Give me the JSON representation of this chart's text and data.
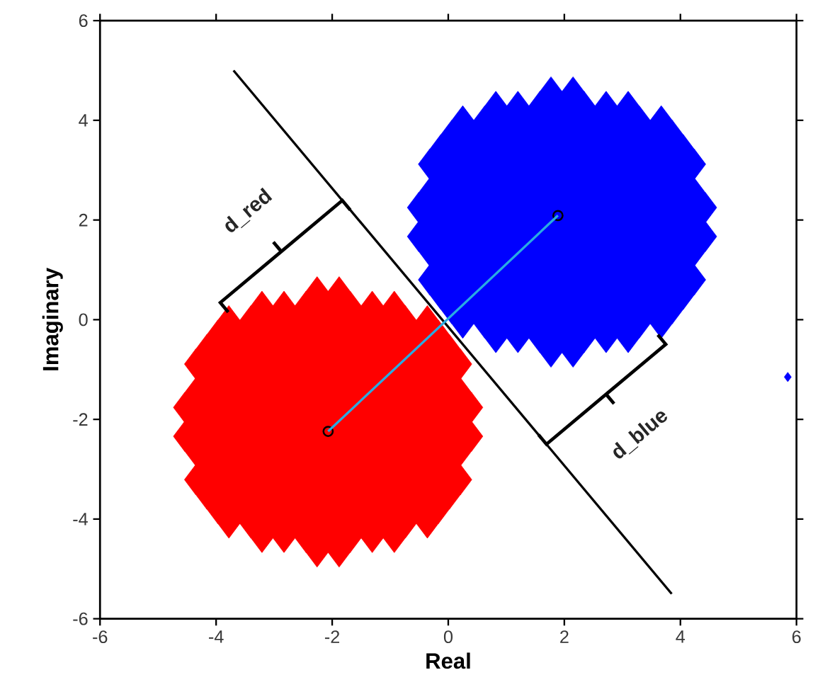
{
  "chart_data": {
    "type": "scatter",
    "xlabel": "Real",
    "ylabel": "Imaginary",
    "xlim": [
      -6,
      6
    ],
    "ylim": [
      -6,
      6
    ],
    "xticks": [
      -6,
      -4,
      -2,
      0,
      2,
      4,
      6
    ],
    "yticks": [
      -6,
      -4,
      -2,
      0,
      2,
      4,
      6
    ],
    "annotations": [
      "d_red",
      "d_blue"
    ],
    "series": [
      {
        "color": "#ff0000",
        "marker": "diamond",
        "x": [
          -2.26,
          -1.88,
          -3.21,
          -2.83,
          -2.45,
          -2.07,
          -1.69,
          -1.31,
          -0.93,
          -3.78,
          -3.4,
          -3.02,
          -2.64,
          -2.26,
          -1.88,
          -1.5,
          -1.12,
          -0.74,
          -0.36,
          -3.97,
          -3.59,
          -3.21,
          -2.83,
          -2.45,
          -2.07,
          -1.69,
          -1.31,
          -0.93,
          -0.55,
          -0.17,
          -4.16,
          -3.78,
          -3.4,
          -3.02,
          -2.64,
          -2.26,
          -1.88,
          -1.5,
          -1.12,
          -0.74,
          -0.36,
          0.02,
          -4.35,
          -3.97,
          -3.59,
          -3.21,
          -2.83,
          -2.45,
          -2.07,
          -1.69,
          -1.31,
          -0.93,
          -0.55,
          -0.17,
          0.21,
          -4.16,
          -3.78,
          -3.4,
          -3.02,
          -2.64,
          -2.26,
          -1.88,
          -1.5,
          -1.12,
          -0.74,
          -0.36,
          0.02,
          -4.35,
          -3.97,
          -3.59,
          -3.21,
          -2.83,
          -2.45,
          -2.07,
          -1.69,
          -1.31,
          -0.93,
          -0.55,
          -0.17,
          0.21,
          -4.54,
          -4.16,
          -3.78,
          -3.4,
          -3.02,
          -2.64,
          -2.26,
          -1.88,
          -1.5,
          -1.12,
          -0.74,
          -0.36,
          0.02,
          0.4,
          -4.35,
          -3.97,
          -3.59,
          -3.21,
          -2.83,
          -2.45,
          -2.07,
          -1.69,
          -1.31,
          -0.93,
          -0.55,
          -0.17,
          0.21,
          -4.54,
          -4.16,
          -3.78,
          -3.4,
          -3.02,
          -2.64,
          -2.26,
          -1.88,
          -1.5,
          -1.12,
          -0.74,
          -0.36,
          0.02,
          0.4,
          -4.35,
          -3.97,
          -3.59,
          -3.21,
          -2.83,
          -2.45,
          -2.07,
          -1.69,
          -1.31,
          -0.93,
          -0.55,
          -0.17,
          0.21,
          -4.16,
          -3.78,
          -3.4,
          -3.02,
          -2.64,
          -2.26,
          -1.88,
          -1.5,
          -1.12,
          -0.74,
          -0.36,
          0.02,
          -4.35,
          -3.97,
          -3.59,
          -3.21,
          -2.83,
          -2.45,
          -2.07,
          -1.69,
          -1.31,
          -0.93,
          -0.55,
          -0.17,
          0.21,
          -4.16,
          -3.78,
          -3.4,
          -3.02,
          -2.64,
          -2.26,
          -1.88,
          -1.5,
          -1.12,
          -0.74,
          -0.36,
          0.02,
          -3.97,
          -3.59,
          -3.21,
          -2.83,
          -2.45,
          -2.07,
          -1.69,
          -1.31,
          -0.93,
          -0.55,
          -0.17,
          -3.78,
          -3.4,
          -3.02,
          -2.64,
          -2.26,
          -1.88,
          -1.5,
          -1.12,
          -0.74,
          -0.36,
          -3.21,
          -2.83,
          -2.45,
          -2.07,
          -1.69,
          -1.31,
          -0.93,
          -2.26,
          -1.88
        ],
        "values": [
          0.56,
          0.56,
          0.27,
          0.27,
          0.27,
          0.27,
          0.27,
          0.27,
          0.27,
          -0.02,
          -0.02,
          -0.02,
          -0.02,
          -0.02,
          -0.02,
          -0.02,
          -0.02,
          -0.02,
          -0.02,
          -0.31,
          -0.31,
          -0.31,
          -0.31,
          -0.31,
          -0.31,
          -0.31,
          -0.31,
          -0.31,
          -0.31,
          -0.31,
          -0.6,
          -0.6,
          -0.6,
          -0.6,
          -0.6,
          -0.6,
          -0.6,
          -0.6,
          -0.6,
          -0.6,
          -0.6,
          -0.6,
          -0.89,
          -0.89,
          -0.89,
          -0.89,
          -0.89,
          -0.89,
          -0.89,
          -0.89,
          -0.89,
          -0.89,
          -0.89,
          -0.89,
          -0.89,
          -1.18,
          -1.18,
          -1.18,
          -1.18,
          -1.18,
          -1.18,
          -1.18,
          -1.18,
          -1.18,
          -1.18,
          -1.18,
          -1.18,
          -1.47,
          -1.47,
          -1.47,
          -1.47,
          -1.47,
          -1.47,
          -1.47,
          -1.47,
          -1.47,
          -1.47,
          -1.47,
          -1.47,
          -1.47,
          -1.76,
          -1.76,
          -1.76,
          -1.76,
          -1.76,
          -1.76,
          -1.76,
          -1.76,
          -1.76,
          -1.76,
          -1.76,
          -1.76,
          -1.76,
          -1.76,
          -2.05,
          -2.05,
          -2.05,
          -2.05,
          -2.05,
          -2.05,
          -2.05,
          -2.05,
          -2.05,
          -2.05,
          -2.05,
          -2.05,
          -2.05,
          -2.34,
          -2.34,
          -2.34,
          -2.34,
          -2.34,
          -2.34,
          -2.34,
          -2.34,
          -2.34,
          -2.34,
          -2.34,
          -2.34,
          -2.34,
          -2.34,
          -2.63,
          -2.63,
          -2.63,
          -2.63,
          -2.63,
          -2.63,
          -2.63,
          -2.63,
          -2.63,
          -2.63,
          -2.63,
          -2.63,
          -2.63,
          -2.92,
          -2.92,
          -2.92,
          -2.92,
          -2.92,
          -2.92,
          -2.92,
          -2.92,
          -2.92,
          -2.92,
          -2.92,
          -2.92,
          -3.21,
          -3.21,
          -3.21,
          -3.21,
          -3.21,
          -3.21,
          -3.21,
          -3.21,
          -3.21,
          -3.21,
          -3.21,
          -3.21,
          -3.21,
          -3.5,
          -3.5,
          -3.5,
          -3.5,
          -3.5,
          -3.5,
          -3.5,
          -3.5,
          -3.5,
          -3.5,
          -3.5,
          -3.5,
          -3.79,
          -3.79,
          -3.79,
          -3.79,
          -3.79,
          -3.79,
          -3.79,
          -3.79,
          -3.79,
          -3.79,
          -3.79,
          -4.08,
          -4.08,
          -4.08,
          -4.08,
          -4.08,
          -4.08,
          -4.08,
          -4.08,
          -4.08,
          -4.08,
          -4.37,
          -4.37,
          -4.37,
          -4.37,
          -4.37,
          -4.37,
          -4.37,
          -4.66,
          -4.66
        ]
      },
      {
        "color": "#0000ff",
        "marker": "diamond",
        "x": [
          1.77,
          2.15,
          0.82,
          1.2,
          1.58,
          1.96,
          2.34,
          2.72,
          3.1,
          0.25,
          0.63,
          1.01,
          1.39,
          1.77,
          2.15,
          2.53,
          2.91,
          3.29,
          3.67,
          0.06,
          0.44,
          0.82,
          1.2,
          1.58,
          1.96,
          2.34,
          2.72,
          3.1,
          3.48,
          3.86,
          -0.13,
          0.25,
          0.63,
          1.01,
          1.39,
          1.77,
          2.15,
          2.53,
          2.91,
          3.29,
          3.67,
          4.05,
          -0.32,
          0.06,
          0.44,
          0.82,
          1.2,
          1.58,
          1.96,
          2.34,
          2.72,
          3.1,
          3.48,
          3.86,
          4.24,
          -0.13,
          0.25,
          0.63,
          1.01,
          1.39,
          1.77,
          2.15,
          2.53,
          2.91,
          3.29,
          3.67,
          4.05,
          -0.32,
          0.06,
          0.44,
          0.82,
          1.2,
          1.58,
          1.96,
          2.34,
          2.72,
          3.1,
          3.48,
          3.86,
          4.24,
          -0.51,
          -0.13,
          0.25,
          0.63,
          1.01,
          1.39,
          1.77,
          2.15,
          2.53,
          2.91,
          3.29,
          3.67,
          4.05,
          4.43,
          -0.32,
          0.06,
          0.44,
          0.82,
          1.2,
          1.58,
          1.96,
          2.34,
          2.72,
          3.1,
          3.48,
          3.86,
          4.24,
          -0.51,
          -0.13,
          0.25,
          0.63,
          1.01,
          1.39,
          1.77,
          2.15,
          2.53,
          2.91,
          3.29,
          3.67,
          4.05,
          4.43,
          -0.32,
          0.06,
          0.44,
          0.82,
          1.2,
          1.58,
          1.96,
          2.34,
          2.72,
          3.1,
          3.48,
          3.86,
          4.24,
          -0.13,
          0.25,
          0.63,
          1.01,
          1.39,
          1.77,
          2.15,
          2.53,
          2.91,
          3.29,
          3.67,
          4.05,
          -0.32,
          0.06,
          0.44,
          0.82,
          1.2,
          1.58,
          1.96,
          2.34,
          2.72,
          3.1,
          3.48,
          3.86,
          4.24,
          -0.13,
          0.25,
          0.63,
          1.01,
          1.39,
          1.77,
          2.15,
          2.53,
          2.91,
          3.29,
          3.67,
          4.05,
          0.06,
          0.44,
          0.82,
          1.2,
          1.58,
          1.96,
          2.34,
          2.72,
          3.1,
          3.48,
          3.86,
          0.25,
          0.63,
          1.01,
          1.39,
          1.77,
          2.15,
          2.53,
          2.91,
          3.29,
          3.67,
          0.82,
          1.2,
          1.58,
          1.96,
          2.34,
          2.72,
          3.1,
          1.77,
          2.15
        ],
        "values": [
          4.57,
          4.57,
          4.28,
          4.28,
          4.28,
          4.28,
          4.28,
          4.28,
          4.28,
          3.99,
          3.99,
          3.99,
          3.99,
          3.99,
          3.99,
          3.99,
          3.99,
          3.99,
          3.99,
          3.7,
          3.7,
          3.7,
          3.7,
          3.7,
          3.7,
          3.7,
          3.7,
          3.7,
          3.7,
          3.7,
          3.41,
          3.41,
          3.41,
          3.41,
          3.41,
          3.41,
          3.41,
          3.41,
          3.41,
          3.41,
          3.41,
          3.41,
          3.12,
          3.12,
          3.12,
          3.12,
          3.12,
          3.12,
          3.12,
          3.12,
          3.12,
          3.12,
          3.12,
          3.12,
          3.12,
          2.83,
          2.83,
          2.83,
          2.83,
          2.83,
          2.83,
          2.83,
          2.83,
          2.83,
          2.83,
          2.83,
          2.83,
          2.54,
          2.54,
          2.54,
          2.54,
          2.54,
          2.54,
          2.54,
          2.54,
          2.54,
          2.54,
          2.54,
          2.54,
          2.54,
          2.25,
          2.25,
          2.25,
          2.25,
          2.25,
          2.25,
          2.25,
          2.25,
          2.25,
          2.25,
          2.25,
          2.25,
          2.25,
          2.25,
          1.96,
          1.96,
          1.96,
          1.96,
          1.96,
          1.96,
          1.96,
          1.96,
          1.96,
          1.96,
          1.96,
          1.96,
          1.96,
          1.67,
          1.67,
          1.67,
          1.67,
          1.67,
          1.67,
          1.67,
          1.67,
          1.67,
          1.67,
          1.67,
          1.67,
          1.67,
          1.67,
          1.38,
          1.38,
          1.38,
          1.38,
          1.38,
          1.38,
          1.38,
          1.38,
          1.38,
          1.38,
          1.38,
          1.38,
          1.38,
          1.09,
          1.09,
          1.09,
          1.09,
          1.09,
          1.09,
          1.09,
          1.09,
          1.09,
          1.09,
          1.09,
          1.09,
          0.8,
          0.8,
          0.8,
          0.8,
          0.8,
          0.8,
          0.8,
          0.8,
          0.8,
          0.8,
          0.8,
          0.8,
          0.8,
          0.51,
          0.51,
          0.51,
          0.51,
          0.51,
          0.51,
          0.51,
          0.51,
          0.51,
          0.51,
          0.51,
          0.51,
          0.22,
          0.22,
          0.22,
          0.22,
          0.22,
          0.22,
          0.22,
          0.22,
          0.22,
          0.22,
          0.22,
          -0.07,
          -0.07,
          -0.07,
          -0.07,
          -0.07,
          -0.07,
          -0.07,
          -0.07,
          -0.07,
          -0.07,
          -0.36,
          -0.36,
          -0.36,
          -0.36,
          -0.36,
          -0.36,
          -0.36,
          -0.65,
          -0.65
        ]
      },
      {
        "color": "#0000ff",
        "marker": "diamond",
        "x": [
          5.85
        ],
        "values": [
          -1.15
        ]
      },
      {
        "type": "line",
        "color": "#000000",
        "x": [
          -3.7,
          3.85
        ],
        "values": [
          5.0,
          -5.5
        ]
      },
      {
        "color": "#000000",
        "marker": "circle",
        "x": [
          -2.07,
          1.89
        ],
        "values": [
          -2.24,
          2.09
        ]
      },
      {
        "type": "line",
        "color": "#29abe2",
        "x": [
          -2.07,
          1.89
        ],
        "values": [
          -2.24,
          2.09
        ]
      }
    ]
  }
}
